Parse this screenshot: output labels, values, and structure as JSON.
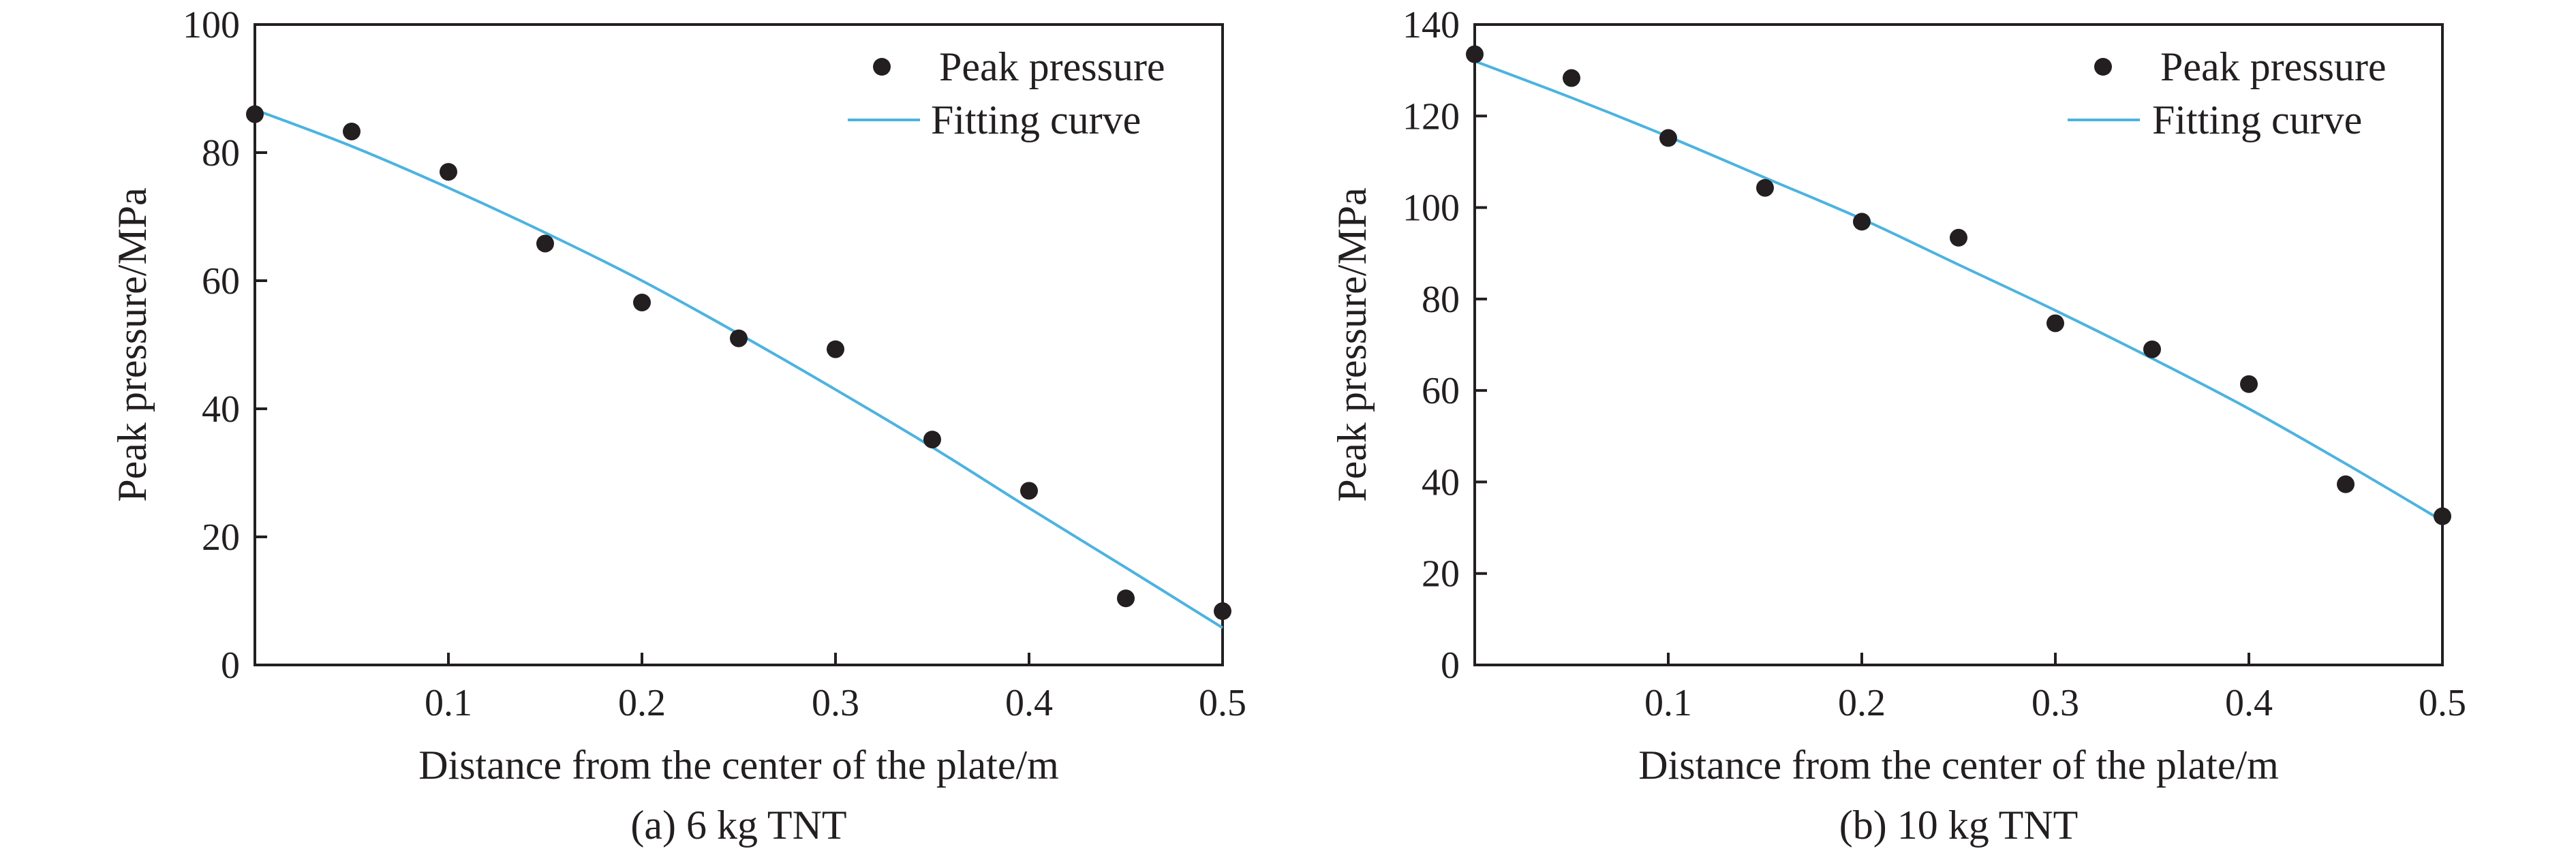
{
  "figure": {
    "colors": {
      "marker": "#231f20",
      "curve": "#4cb3e0",
      "axis": "#231f20"
    }
  },
  "chart_data": [
    {
      "type": "scatter",
      "caption": "(a) 6 kg TNT",
      "xlabel": "Distance from the center of the plate/m",
      "ylabel": "Peak pressure/MPa",
      "xlim": [
        0,
        0.5
      ],
      "ylim": [
        0,
        100
      ],
      "xticks": [
        0.1,
        0.2,
        0.3,
        0.4,
        0.5
      ],
      "xtick_labels": [
        "0.1",
        "0.2",
        "0.3",
        "0.4",
        "0.5"
      ],
      "yticks": [
        0,
        20,
        40,
        60,
        80,
        100
      ],
      "ytick_labels": [
        "0",
        "20",
        "40",
        "60",
        "80",
        "100"
      ],
      "legend": [
        "Peak pressure",
        "Fitting curve"
      ],
      "legend_position": "top-right",
      "series": [
        {
          "name": "Peak pressure",
          "kind": "scatter",
          "x": [
            0,
            0.05,
            0.1,
            0.15,
            0.2,
            0.25,
            0.3,
            0.35,
            0.4,
            0.45,
            0.5
          ],
          "y": [
            86,
            83.3,
            77,
            65.8,
            56.6,
            51,
            49.3,
            35.2,
            27.2,
            10.4,
            8.4
          ]
        },
        {
          "name": "Fitting curve",
          "kind": "line",
          "x": [
            0,
            0.05,
            0.1,
            0.15,
            0.2,
            0.25,
            0.3,
            0.35,
            0.4,
            0.45,
            0.5
          ],
          "y": [
            86.7,
            81,
            74.5,
            67.5,
            60,
            51.7,
            43,
            34,
            24.5,
            15.2,
            5.8
          ]
        }
      ]
    },
    {
      "type": "scatter",
      "caption": "(b) 10 kg TNT",
      "xlabel": "Distance from the center of the plate/m",
      "ylabel": "Peak pressure/MPa",
      "xlim": [
        0,
        0.5
      ],
      "ylim": [
        0,
        140
      ],
      "xticks": [
        0.1,
        0.2,
        0.3,
        0.4,
        0.5
      ],
      "xtick_labels": [
        "0.1",
        "0.2",
        "0.3",
        "0.4",
        "0.5"
      ],
      "yticks": [
        0,
        20,
        40,
        60,
        80,
        100,
        120,
        140
      ],
      "ytick_labels": [
        "0",
        "20",
        "40",
        "60",
        "80",
        "100",
        "120",
        "140"
      ],
      "legend": [
        "Peak pressure",
        "Fitting curve"
      ],
      "legend_position": "top-right",
      "series": [
        {
          "name": "Peak pressure",
          "kind": "scatter",
          "x": [
            0,
            0.05,
            0.1,
            0.15,
            0.2,
            0.25,
            0.3,
            0.35,
            0.4,
            0.45,
            0.5
          ],
          "y": [
            133.5,
            128.3,
            115.2,
            104.3,
            96.9,
            93.4,
            74.7,
            69,
            61.4,
            39.5,
            32.5
          ]
        },
        {
          "name": "Fitting curve",
          "kind": "line",
          "x": [
            0,
            0.05,
            0.1,
            0.15,
            0.2,
            0.25,
            0.3,
            0.35,
            0.4,
            0.45,
            0.5
          ],
          "y": [
            132,
            124,
            115.5,
            106.5,
            97.5,
            87.5,
            77.5,
            67,
            56,
            44,
            31.5
          ]
        }
      ]
    }
  ]
}
